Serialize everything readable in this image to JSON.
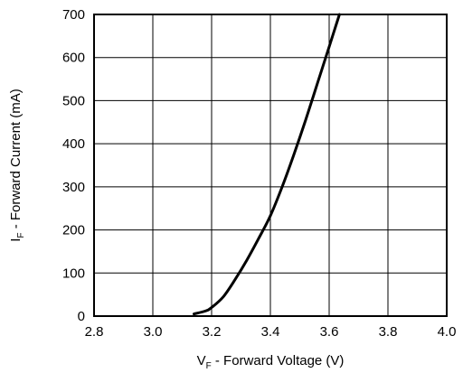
{
  "chart_data": {
    "type": "line",
    "title": "",
    "xlabel": {
      "main": "V",
      "sub": "F",
      "rest": " - Forward Voltage (V)"
    },
    "ylabel": {
      "main": "I",
      "sub": "F",
      "rest": " - Forward Current (mA)"
    },
    "xlim": [
      2.8,
      4.0
    ],
    "ylim": [
      0,
      700
    ],
    "x_ticks": [
      2.8,
      3.0,
      3.2,
      3.4,
      3.6,
      3.8,
      4.0
    ],
    "x_tick_labels": [
      "2.8",
      "3.0",
      "3.2",
      "3.4",
      "3.6",
      "3.8",
      "4.0"
    ],
    "y_ticks": [
      0,
      100,
      200,
      300,
      400,
      500,
      600,
      700
    ],
    "y_tick_labels": [
      "0",
      "100",
      "200",
      "300",
      "400",
      "500",
      "600",
      "700"
    ],
    "grid": true,
    "legend": "none",
    "series": [
      {
        "x": [
          3.14,
          3.18,
          3.2,
          3.24,
          3.28,
          3.32,
          3.36,
          3.4,
          3.44,
          3.48,
          3.52,
          3.56,
          3.6,
          3.635
        ],
        "y": [
          5,
          12,
          20,
          45,
          85,
          130,
          180,
          233,
          300,
          375,
          455,
          540,
          625,
          700
        ]
      }
    ]
  }
}
